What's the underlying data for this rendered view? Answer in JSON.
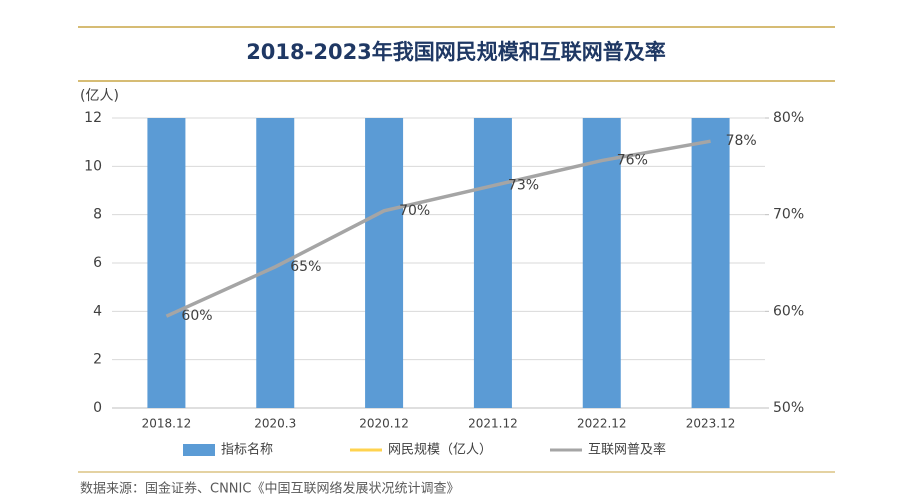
{
  "chart_data": {
    "type": "bar",
    "title": "2018-2023年我国网民规模和互联网普及率",
    "ylabel": "(亿人)",
    "source": "数据来源：国金证券、CNNIC《中国互联网络发展状况统计调查》",
    "categories": [
      "2018.12",
      "2020.3",
      "2020.12",
      "2021.12",
      "2022.12",
      "2023.12"
    ],
    "series": [
      {
        "name": "指标名称",
        "type": "bar",
        "color": "#5b9bd5",
        "values": [
          12,
          12,
          12,
          12,
          12,
          12
        ]
      },
      {
        "name": "网民规模（亿人）",
        "type": "line",
        "color": "#ffd34f",
        "values": [
          null,
          null,
          null,
          null,
          null,
          null
        ]
      },
      {
        "name": "互联网普及率",
        "type": "line",
        "axis": "y2",
        "color": "#a5a5a5",
        "values": [
          59.5,
          64.6,
          70.4,
          73,
          75.6,
          77.6
        ],
        "value_labels": [
          "60%",
          "65%",
          "70%",
          "73%",
          "76%",
          "78%"
        ]
      }
    ],
    "ylim": [
      0,
      12
    ],
    "yticks": [
      0,
      2,
      4,
      6,
      8,
      10,
      12
    ],
    "y2lim": [
      50,
      80
    ],
    "y2ticks": [
      {
        "value": 50,
        "label": "50%"
      },
      {
        "value": 60,
        "label": "60%"
      },
      {
        "value": 70,
        "label": "70%"
      },
      {
        "value": 80,
        "label": "80%"
      }
    ],
    "grid": true
  }
}
